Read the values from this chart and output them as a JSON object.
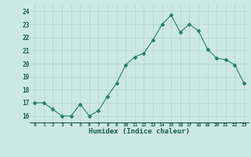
{
  "x": [
    0,
    1,
    2,
    3,
    4,
    5,
    6,
    7,
    8,
    9,
    10,
    11,
    12,
    13,
    14,
    15,
    16,
    17,
    18,
    19,
    20,
    21,
    22,
    23
  ],
  "y": [
    17.0,
    17.0,
    16.5,
    16.0,
    16.0,
    16.9,
    16.0,
    16.4,
    17.5,
    18.5,
    19.9,
    20.5,
    20.8,
    21.8,
    23.0,
    23.7,
    22.4,
    23.0,
    22.5,
    21.1,
    20.4,
    20.3,
    19.9,
    18.5
  ],
  "line_color": "#2e7d6e",
  "bg_color": "#cce8e4",
  "grid_color": "#b0d4ce",
  "xlabel": "Humidex (Indice chaleur)",
  "xlabel_color": "#1a5c52",
  "tick_color": "#1a5c52",
  "ylim": [
    15.5,
    24.5
  ],
  "xlim": [
    -0.5,
    23.5
  ],
  "yticks": [
    16,
    17,
    18,
    19,
    20,
    21,
    22,
    23,
    24
  ],
  "xticks": [
    0,
    1,
    2,
    3,
    4,
    5,
    6,
    7,
    8,
    9,
    10,
    11,
    12,
    13,
    14,
    15,
    16,
    17,
    18,
    19,
    20,
    21,
    22,
    23
  ]
}
